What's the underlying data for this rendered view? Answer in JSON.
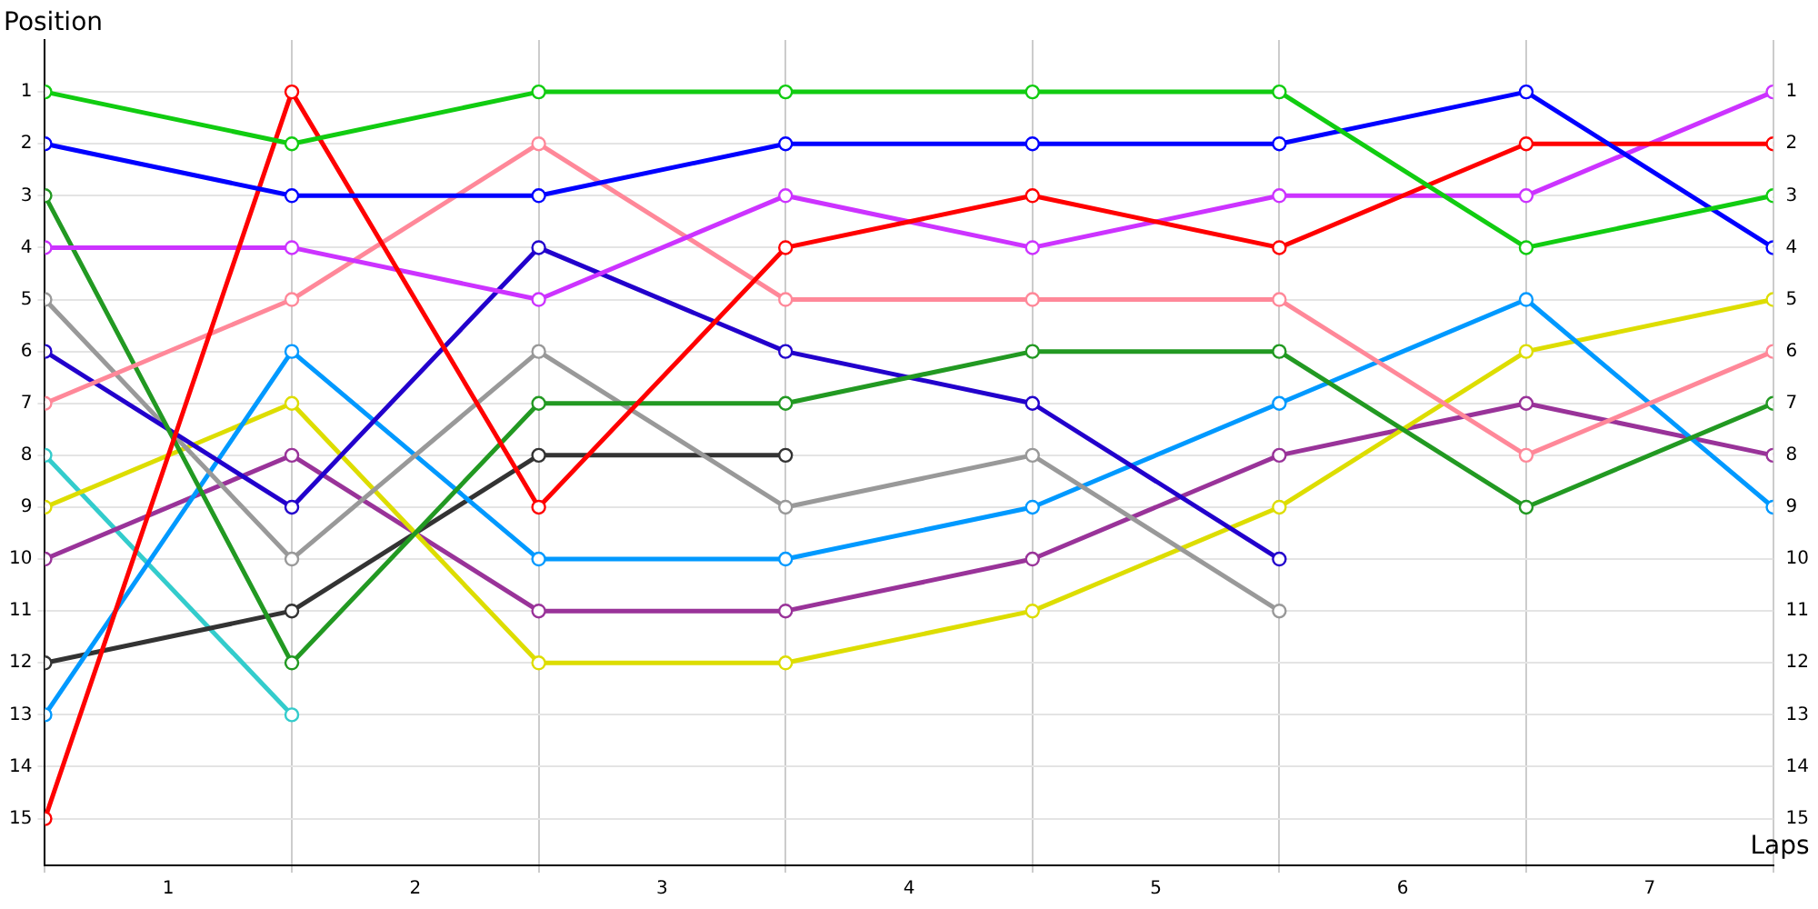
{
  "chart_data": {
    "type": "line",
    "ylabel": "Position",
    "xlabel": "Laps",
    "x": [
      0,
      1,
      2,
      3,
      4,
      5,
      6,
      7
    ],
    "xlim": [
      0,
      7
    ],
    "xticks": [
      {
        "value": 0,
        "label": null
      },
      {
        "value": 0.5,
        "label": "1"
      },
      {
        "value": 1,
        "label": null
      },
      {
        "value": 1.5,
        "label": "2"
      },
      {
        "value": 2,
        "label": null
      },
      {
        "value": 2.5,
        "label": "3"
      },
      {
        "value": 3,
        "label": null
      },
      {
        "value": 3.5,
        "label": "4"
      },
      {
        "value": 4,
        "label": null
      },
      {
        "value": 4.5,
        "label": "5"
      },
      {
        "value": 5,
        "label": null
      },
      {
        "value": 5.5,
        "label": "6"
      },
      {
        "value": 6,
        "label": null
      },
      {
        "value": 6.5,
        "label": "7"
      },
      {
        "value": 7,
        "label": null
      }
    ],
    "ylim": [
      15.9,
      0
    ],
    "yticks": [
      1,
      2,
      3,
      4,
      5,
      6,
      7,
      8,
      9,
      10,
      11,
      12,
      13,
      14,
      15
    ],
    "y2lim": [
      15.9,
      0
    ],
    "y2ticks": [
      1,
      2,
      3,
      4,
      5,
      6,
      7,
      8,
      9,
      10,
      11,
      12,
      13,
      14,
      15
    ],
    "grid": true,
    "legend": false,
    "marker": "circle",
    "line_style": "solid",
    "series": [
      {
        "color": "#11cc11",
        "values": [
          1,
          2,
          1,
          1,
          1,
          1,
          4,
          3
        ]
      },
      {
        "color": "#0000ff",
        "values": [
          2,
          3,
          3,
          2,
          2,
          2,
          1,
          4
        ]
      },
      {
        "color": "#ff0000",
        "values": [
          15,
          1,
          9,
          4,
          3,
          4,
          2,
          2
        ]
      },
      {
        "color": "#cc33ff",
        "values": [
          4,
          4,
          5,
          3,
          4,
          3,
          3,
          1
        ]
      },
      {
        "color": "#ff8899",
        "values": [
          7,
          5,
          2,
          5,
          5,
          5,
          8,
          6
        ]
      },
      {
        "color": "#229922",
        "values": [
          3,
          12,
          7,
          7,
          6,
          6,
          9,
          7
        ]
      },
      {
        "color": "#2200cc",
        "values": [
          6,
          9,
          4,
          6,
          7,
          10,
          null,
          null
        ]
      },
      {
        "color": "#999999",
        "values": [
          5,
          10,
          6,
          9,
          8,
          11,
          null,
          null
        ]
      },
      {
        "color": "#0099ff",
        "values": [
          13,
          6,
          10,
          10,
          9,
          7,
          5,
          9
        ]
      },
      {
        "color": "#dddd00",
        "values": [
          9,
          7,
          12,
          12,
          11,
          9,
          6,
          5
        ]
      },
      {
        "color": "#993399",
        "values": [
          10,
          8,
          11,
          11,
          10,
          8,
          7,
          8
        ]
      },
      {
        "color": "#333333",
        "values": [
          12,
          11,
          8,
          8,
          null,
          null,
          null,
          null
        ]
      },
      {
        "color": "#33cccc",
        "values": [
          8,
          13,
          null,
          null,
          null,
          null,
          null,
          null
        ]
      }
    ]
  }
}
